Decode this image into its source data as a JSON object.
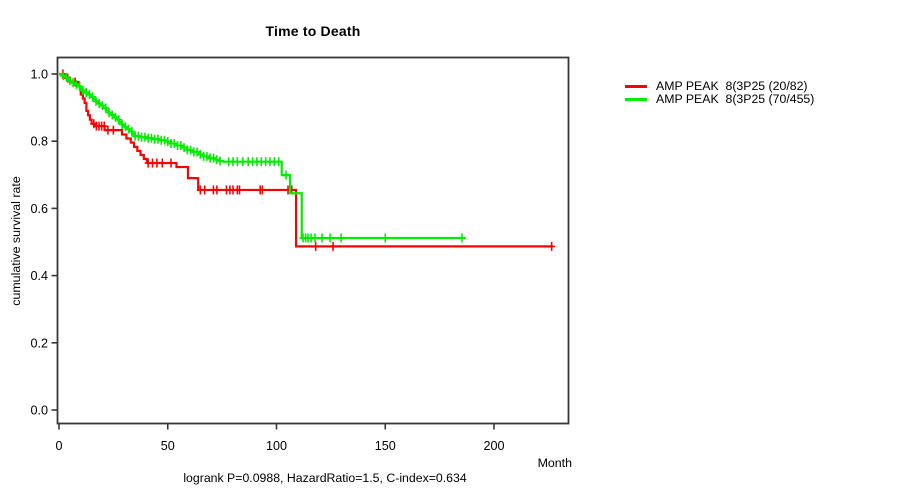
{
  "title": "Time to Death",
  "legend": {
    "items": [
      {
        "label": "AMP PEAK  8(3P25 (20/82)",
        "color": "#ff0000"
      },
      {
        "label": "AMP PEAK  8(3P25 (70/455)",
        "color": "#00ee00"
      }
    ]
  },
  "footer": "logrank P=0.0988, HazardRatio=1.5, C-index=0.634",
  "axis_titles": {
    "x": "Month",
    "y": "cumulative survival rate"
  },
  "chart_data": {
    "type": "line",
    "subtype": "kaplan-meier-step-curves",
    "title": "Time to Death",
    "xlabel": "Month",
    "ylabel": "cumulative survival rate",
    "xlim": [
      0,
      234
    ],
    "ylim": [
      0.0,
      1.0
    ],
    "xticks": [
      0,
      50,
      100,
      150,
      200
    ],
    "xtick_labels": [
      "0",
      "50",
      "100",
      "150",
      "200"
    ],
    "yticks": [
      0.0,
      0.2,
      0.4,
      0.6,
      0.8,
      1.0
    ],
    "ytick_labels": [
      "0.0",
      "0.2",
      "0.4",
      "0.6",
      "0.8",
      "1.0"
    ],
    "grid": false,
    "legend_position": "right-outside",
    "annotation": "logrank P=0.0988, HazardRatio=1.5, C-index=0.634",
    "frame_color": "#383838",
    "series": [
      {
        "key": "red",
        "name": "AMP PEAK  8(3P25 (20/82)",
        "events": 20,
        "n": 82,
        "color": "#ff0000",
        "end_month": 227,
        "steps": [
          [
            0,
            1.0
          ],
          [
            2,
            0.988
          ],
          [
            5,
            0.976
          ],
          [
            9,
            0.963
          ],
          [
            10,
            0.939
          ],
          [
            11,
            0.927
          ],
          [
            11.8,
            0.914
          ],
          [
            12.6,
            0.89
          ],
          [
            13.4,
            0.877
          ],
          [
            14.2,
            0.864
          ],
          [
            15,
            0.852
          ],
          [
            16.5,
            0.845
          ],
          [
            21,
            0.833
          ],
          [
            29,
            0.82
          ],
          [
            31,
            0.808
          ],
          [
            33,
            0.796
          ],
          [
            34.5,
            0.783
          ],
          [
            36,
            0.771
          ],
          [
            37.5,
            0.759
          ],
          [
            39,
            0.747
          ],
          [
            40.5,
            0.735
          ],
          [
            54,
            0.723
          ],
          [
            59.3,
            0.69
          ],
          [
            64,
            0.655
          ],
          [
            109,
            0.487
          ]
        ],
        "censor_months": [
          1.8,
          4,
          7.4,
          16,
          17.2,
          18.4,
          19.6,
          20.8,
          22.5,
          25,
          41,
          43,
          45,
          47.5,
          51.5,
          65,
          67,
          71,
          72.6,
          77,
          78.6,
          80,
          82,
          83,
          92.5,
          93.5,
          105.3,
          107,
          118,
          126,
          226.5
        ]
      },
      {
        "key": "green",
        "name": "AMP PEAK  8(3P25 (70/455)",
        "events": 70,
        "n": 455,
        "color": "#00ee00",
        "end_month": 187,
        "steps": [
          [
            0,
            1.0
          ],
          [
            1.2,
            0.995
          ],
          [
            2.4,
            0.99
          ],
          [
            3.6,
            0.985
          ],
          [
            4.8,
            0.98
          ],
          [
            6,
            0.974
          ],
          [
            7.2,
            0.969
          ],
          [
            8.4,
            0.963
          ],
          [
            9.6,
            0.957
          ],
          [
            10.8,
            0.951
          ],
          [
            12,
            0.945
          ],
          [
            13.2,
            0.939
          ],
          [
            14.4,
            0.932
          ],
          [
            15.6,
            0.926
          ],
          [
            16.8,
            0.919
          ],
          [
            18,
            0.912
          ],
          [
            19.2,
            0.906
          ],
          [
            20.4,
            0.899
          ],
          [
            21.6,
            0.892
          ],
          [
            22.8,
            0.885
          ],
          [
            24,
            0.878
          ],
          [
            25.2,
            0.871
          ],
          [
            26.4,
            0.864
          ],
          [
            27.6,
            0.857
          ],
          [
            28.8,
            0.85
          ],
          [
            30,
            0.843
          ],
          [
            31.2,
            0.836
          ],
          [
            32.4,
            0.829
          ],
          [
            33.6,
            0.822
          ],
          [
            34.8,
            0.815
          ],
          [
            37,
            0.812
          ],
          [
            40,
            0.809
          ],
          [
            43,
            0.806
          ],
          [
            46,
            0.803
          ],
          [
            49,
            0.799
          ],
          [
            51.5,
            0.793
          ],
          [
            54,
            0.787
          ],
          [
            56.5,
            0.781
          ],
          [
            59,
            0.774
          ],
          [
            61.5,
            0.768
          ],
          [
            64,
            0.761
          ],
          [
            66.5,
            0.755
          ],
          [
            69,
            0.75
          ],
          [
            71.5,
            0.745
          ],
          [
            74,
            0.741
          ],
          [
            75.5,
            0.739
          ],
          [
            102.4,
            0.699
          ],
          [
            106.2,
            0.645
          ],
          [
            111.6,
            0.512
          ]
        ],
        "censor_months": [
          2,
          3.5,
          5,
          6.5,
          8,
          9.5,
          11,
          12.5,
          14,
          15.5,
          17,
          18.5,
          20,
          21.5,
          23,
          24.5,
          26,
          27.5,
          29,
          30.5,
          32,
          33.5,
          35,
          36.5,
          38,
          39.5,
          41,
          42.5,
          44,
          45.5,
          47,
          48.5,
          50,
          51.5,
          53,
          54.5,
          56,
          57.5,
          59,
          60.5,
          62,
          63.5,
          65,
          66.5,
          68,
          69.5,
          71,
          72.5,
          74,
          78,
          80,
          82,
          84.5,
          87,
          89,
          91,
          93,
          95,
          97,
          99,
          101,
          104.4,
          112.2,
          113.4,
          114.5,
          115.9,
          117.7,
          120.9,
          124.6,
          129.7,
          150,
          185.3
        ]
      }
    ]
  }
}
